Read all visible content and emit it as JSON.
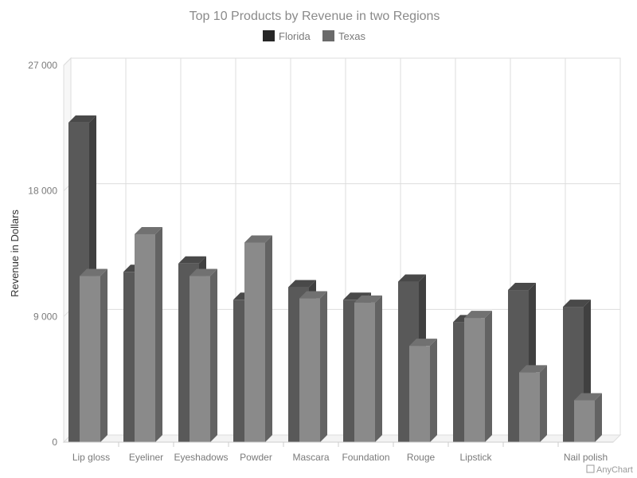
{
  "chart_data": {
    "type": "bar",
    "title": "Top 10 Products by Revenue in two Regions",
    "ylabel": "Revenue in Dollars",
    "xlabel": "",
    "categories": [
      "Lip gloss",
      "Eyeliner",
      "Eyeshadows",
      "Powder",
      "Mascara",
      "Foundation",
      "Rouge",
      "Lipstick",
      "",
      "Nail polish"
    ],
    "series": [
      {
        "name": "Florida",
        "color": "#595959",
        "values": [
          22900,
          12200,
          12800,
          10200,
          11100,
          10200,
          11500,
          8600,
          10900,
          9700
        ]
      },
      {
        "name": "Texas",
        "color": "#8a8a8a",
        "values": [
          11900,
          14900,
          11900,
          14300,
          10300,
          10000,
          6900,
          8900,
          5000,
          3000
        ]
      }
    ],
    "ylim": [
      0,
      27000
    ],
    "yticks": [
      "0",
      "9 000",
      "18 000",
      "27 000"
    ],
    "ytick_values": [
      0,
      9000,
      18000,
      27000
    ],
    "grid": true,
    "legend_position": "top-center",
    "style": "3d-column"
  },
  "credits": "AnyChart"
}
